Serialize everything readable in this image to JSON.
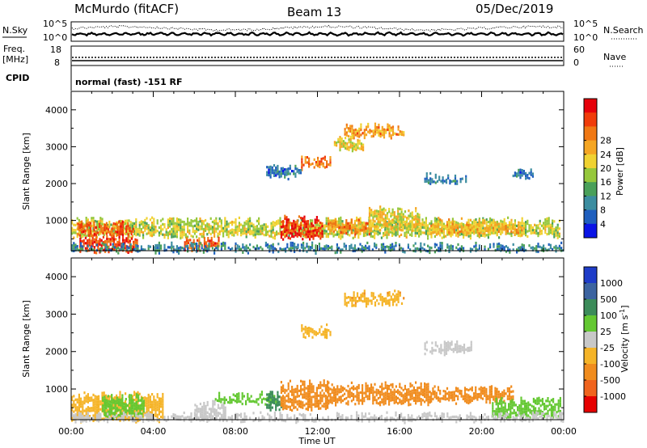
{
  "header": {
    "station": "McMurdo (fitACF)",
    "beam": "Beam 13",
    "date": "05/Dec/2019"
  },
  "strip": {
    "nsky_label": "N.Sky",
    "nsearch_label": "N.Search",
    "nsky_ticks": [
      "10^5",
      "10^0"
    ],
    "nsearch_ticks": [
      "10^5",
      "10^0"
    ],
    "freq_label_1": "Freq.",
    "freq_label_2": "[MHz]",
    "freq_ticks": [
      "18",
      "8"
    ],
    "nave_label": "Nave",
    "nave_ticks": [
      "60",
      "0"
    ],
    "cpid_label": "CPID",
    "cpid_text": "normal (fast) -151 RF"
  },
  "chart_data": [
    {
      "type": "heatmap",
      "name": "power",
      "xlabel": "Time UT",
      "ylabel": "Slant Range [km]",
      "x_ticks": [
        "00:00",
        "04:00",
        "08:00",
        "12:00",
        "16:00",
        "20:00",
        "00:00"
      ],
      "xlim_hours": [
        0,
        24
      ],
      "ylim": [
        180,
        4500
      ],
      "y_ticks": [
        1000,
        2000,
        3000,
        4000
      ],
      "colorbar": {
        "label": "Power [dB]",
        "ticks": [
          4,
          8,
          12,
          16,
          20,
          24,
          28
        ],
        "colors": [
          "#0a14e6",
          "#1f5fbe",
          "#3c8da0",
          "#4aa05a",
          "#96c83c",
          "#f0d232",
          "#f5a623",
          "#f07814",
          "#f03c0a",
          "#e6000a"
        ]
      },
      "echo_regions": [
        {
          "t0": 0.0,
          "t1": 23.8,
          "r0": 600,
          "r1": 1000,
          "level": 16
        },
        {
          "t0": 0.3,
          "t1": 3.0,
          "r0": 650,
          "r1": 900,
          "level": 26
        },
        {
          "t0": 0.4,
          "t1": 3.2,
          "r0": 200,
          "r1": 550,
          "level": 27
        },
        {
          "t0": 5.5,
          "t1": 7.2,
          "r0": 250,
          "r1": 500,
          "level": 26
        },
        {
          "t0": 10.2,
          "t1": 12.2,
          "r0": 550,
          "r1": 1050,
          "level": 28
        },
        {
          "t0": 12.5,
          "t1": 14.5,
          "r0": 700,
          "r1": 950,
          "level": 23
        },
        {
          "t0": 14.5,
          "t1": 17.0,
          "r0": 800,
          "r1": 1300,
          "level": 18
        },
        {
          "t0": 17.5,
          "t1": 22.0,
          "r0": 650,
          "r1": 950,
          "level": 20
        },
        {
          "t0": 11.2,
          "t1": 12.6,
          "r0": 2450,
          "r1": 2650,
          "level": 24
        },
        {
          "t0": 13.3,
          "t1": 16.2,
          "r0": 3300,
          "r1": 3550,
          "level": 22
        },
        {
          "t0": 12.8,
          "t1": 14.2,
          "r0": 2950,
          "r1": 3250,
          "level": 18
        },
        {
          "t0": 9.5,
          "t1": 11.2,
          "r0": 2200,
          "r1": 2450,
          "level": 6
        },
        {
          "t0": 17.2,
          "t1": 19.2,
          "r0": 2050,
          "r1": 2200,
          "level": 7
        },
        {
          "t0": 21.5,
          "t1": 22.5,
          "r0": 2150,
          "r1": 2350,
          "level": 6
        },
        {
          "t0": 0.0,
          "t1": 24.0,
          "r0": 200,
          "r1": 320,
          "level": 8
        }
      ]
    },
    {
      "type": "heatmap",
      "name": "velocity",
      "xlabel": "Time UT",
      "ylabel": "Slant Range [km]",
      "x_ticks": [
        "00:00",
        "04:00",
        "08:00",
        "12:00",
        "16:00",
        "20:00",
        "00:00"
      ],
      "xlim_hours": [
        0,
        24
      ],
      "ylim": [
        180,
        4500
      ],
      "y_ticks": [
        1000,
        2000,
        3000,
        4000
      ],
      "colorbar": {
        "label": "Velocity [m s^-1]",
        "ticks": [
          1000,
          500,
          100,
          25,
          -25,
          -100,
          -500,
          -1000
        ],
        "colors": [
          "#1e3cc8",
          "#3c64a0",
          "#3c8c5a",
          "#64c832",
          "#c8c8c8",
          "#f5b428",
          "#f08c1e",
          "#f0641e",
          "#e60000"
        ]
      },
      "echo_regions": [
        {
          "t0": 0.0,
          "t1": 4.5,
          "r0": 200,
          "r1": 850,
          "level": -60
        },
        {
          "t0": 1.5,
          "t1": 3.5,
          "r0": 300,
          "r1": 800,
          "level": 60
        },
        {
          "t0": 6.0,
          "t1": 7.5,
          "r0": 250,
          "r1": 600,
          "level": 0
        },
        {
          "t0": 7.0,
          "t1": 10.0,
          "r0": 650,
          "r1": 850,
          "level": 60
        },
        {
          "t0": 9.5,
          "t1": 10.2,
          "r0": 500,
          "r1": 850,
          "level": 300
        },
        {
          "t0": 10.2,
          "t1": 12.5,
          "r0": 500,
          "r1": 1150,
          "level": -300
        },
        {
          "t0": 12.5,
          "t1": 17.5,
          "r0": 650,
          "r1": 1100,
          "level": -200
        },
        {
          "t0": 17.5,
          "t1": 21.5,
          "r0": 700,
          "r1": 1000,
          "level": -250
        },
        {
          "t0": 20.5,
          "t1": 23.8,
          "r0": 300,
          "r1": 700,
          "level": 60
        },
        {
          "t0": 13.3,
          "t1": 16.2,
          "r0": 3300,
          "r1": 3550,
          "level": -80
        },
        {
          "t0": 11.2,
          "t1": 12.6,
          "r0": 2450,
          "r1": 2650,
          "level": -60
        },
        {
          "t0": 17.2,
          "t1": 19.5,
          "r0": 2000,
          "r1": 2200,
          "level": 0
        },
        {
          "t0": 0.0,
          "t1": 24.0,
          "r0": 190,
          "r1": 300,
          "level": 0
        }
      ]
    }
  ]
}
